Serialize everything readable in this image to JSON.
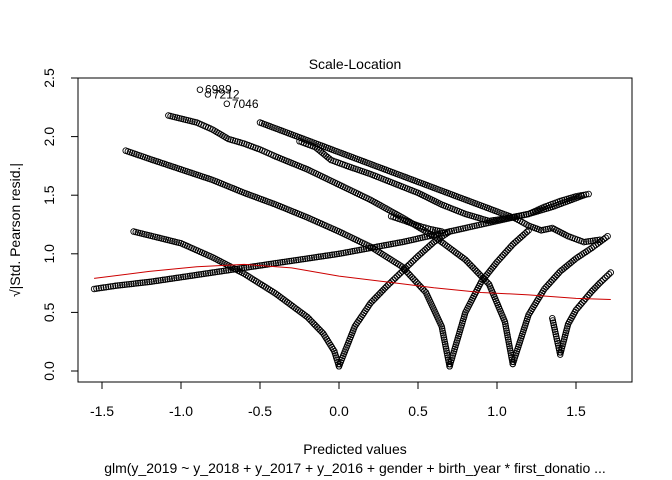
{
  "chart_data": {
    "type": "scatter",
    "title": "Scale-Location",
    "xlabel": "Predicted values",
    "ylabel": "√|Std. Pearson resid.|",
    "subtitle": "glm(y_2019 ~ y_2018 + y_2017 + y_2016 + gender + birth_year * first_donatio ...",
    "xlim": [
      -1.6,
      1.75
    ],
    "ylim": [
      -0.05,
      2.5
    ],
    "x_ticks": [
      -1.5,
      -1.0,
      -0.5,
      0.0,
      0.5,
      1.0,
      1.5
    ],
    "x_tick_labels": [
      "-1.5",
      "-1.0",
      "-0.5",
      "0.0",
      "0.5",
      "1.0",
      "1.5"
    ],
    "y_ticks": [
      0.0,
      0.5,
      1.0,
      1.5,
      2.0,
      2.5
    ],
    "y_tick_labels": [
      "0.0",
      "0.5",
      "1.0",
      "1.5",
      "2.0",
      "2.5"
    ],
    "grid": false,
    "marker": "open-circle",
    "point_color": "#000000",
    "smooth_color": "#cc0000",
    "series": [
      {
        "x": [
          -1.55,
          -1.4,
          -1.2,
          -1.0,
          -0.8,
          -0.6,
          -0.4,
          -0.2,
          0.0,
          0.2,
          0.4,
          0.6,
          0.8,
          1.0,
          1.2,
          1.35,
          1.55
        ],
        "y": [
          0.7,
          0.73,
          0.76,
          0.8,
          0.84,
          0.88,
          0.92,
          0.96,
          1.0,
          1.05,
          1.1,
          1.16,
          1.22,
          1.28,
          1.34,
          1.4,
          1.5
        ]
      },
      {
        "x": [
          -1.3,
          -1.15,
          -1.0,
          -0.8,
          -0.6,
          -0.4,
          -0.2,
          -0.1,
          -0.03,
          0.0
        ],
        "y": [
          1.19,
          1.14,
          1.09,
          0.97,
          0.83,
          0.66,
          0.46,
          0.32,
          0.17,
          0.04
        ]
      },
      {
        "x": [
          -1.35,
          -1.2,
          -1.0,
          -0.8,
          -0.6,
          -0.4,
          -0.2,
          0.0,
          0.2,
          0.4,
          0.55,
          0.65,
          0.7
        ],
        "y": [
          1.88,
          1.81,
          1.72,
          1.63,
          1.52,
          1.42,
          1.31,
          1.19,
          1.06,
          0.89,
          0.67,
          0.38,
          0.04
        ]
      },
      {
        "x": [
          -1.08,
          -0.9,
          -0.8,
          -0.7,
          -0.6,
          -0.5,
          -0.4,
          -0.2,
          0.0,
          0.2,
          0.4,
          0.6,
          0.8,
          0.95,
          1.05,
          1.1
        ],
        "y": [
          2.18,
          2.12,
          2.06,
          1.98,
          1.94,
          1.89,
          1.83,
          1.72,
          1.59,
          1.46,
          1.31,
          1.15,
          0.95,
          0.74,
          0.42,
          0.06
        ]
      },
      {
        "x": [
          0.0,
          0.1,
          0.2,
          0.3,
          0.4,
          0.5,
          0.6,
          0.7
        ],
        "y": [
          0.04,
          0.38,
          0.58,
          0.72,
          0.85,
          0.98,
          1.1,
          1.19
        ]
      },
      {
        "x": [
          0.7,
          0.8,
          0.9,
          1.0,
          1.1,
          1.2
        ],
        "y": [
          0.04,
          0.5,
          0.76,
          0.93,
          1.08,
          1.2
        ]
      },
      {
        "x": [
          1.1,
          1.2,
          1.3,
          1.4,
          1.5,
          1.6,
          1.7
        ],
        "y": [
          0.06,
          0.48,
          0.7,
          0.85,
          0.96,
          1.05,
          1.15
        ]
      },
      {
        "x": [
          1.35,
          1.4,
          1.45,
          1.5,
          1.55,
          1.6,
          1.65,
          1.72
        ],
        "y": [
          0.45,
          0.14,
          0.4,
          0.52,
          0.6,
          0.68,
          0.75,
          0.84
        ]
      },
      {
        "x": [
          -0.25,
          -0.15,
          -0.05,
          0.05,
          0.2,
          0.35,
          0.5,
          0.65,
          0.8,
          0.95,
          1.05,
          1.2,
          1.3,
          1.4,
          1.5,
          1.58
        ],
        "y": [
          1.96,
          1.91,
          1.8,
          1.75,
          1.68,
          1.6,
          1.52,
          1.42,
          1.34,
          1.28,
          1.3,
          1.34,
          1.4,
          1.45,
          1.49,
          1.51
        ]
      },
      {
        "x": [
          -0.5,
          1.12,
          1.2,
          1.28,
          1.35,
          1.45,
          1.55,
          1.65
        ],
        "y": [
          2.12,
          1.3,
          1.24,
          1.2,
          1.22,
          1.15,
          1.1,
          1.12
        ]
      },
      {
        "x": [
          0.33,
          0.42,
          0.5,
          0.58,
          0.65
        ],
        "y": [
          1.32,
          1.28,
          1.24,
          1.21,
          1.19
        ]
      }
    ],
    "outliers": [
      {
        "label": "6989",
        "x": -0.88,
        "y": 2.4
      },
      {
        "label": "7212",
        "x": -0.83,
        "y": 2.36
      },
      {
        "label": "7046",
        "x": -0.71,
        "y": 2.28
      }
    ],
    "smooth_line": {
      "x": [
        -1.55,
        -1.2,
        -0.9,
        -0.6,
        -0.3,
        0.0,
        0.3,
        0.6,
        0.9,
        1.2,
        1.5,
        1.72
      ],
      "y": [
        0.79,
        0.85,
        0.89,
        0.91,
        0.88,
        0.81,
        0.76,
        0.71,
        0.67,
        0.65,
        0.62,
        0.61
      ]
    }
  }
}
